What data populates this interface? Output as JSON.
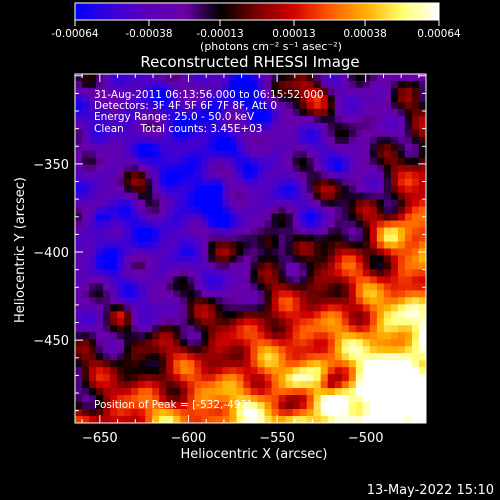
{
  "colorbar": {
    "tick_labels": [
      "-0.00064",
      "-0.00038",
      "-0.00013",
      "0.00013",
      "0.00038",
      "0.00064"
    ],
    "tick_values": [
      -0.00064,
      -0.00038,
      -0.00013,
      0.00013,
      0.00038,
      0.00064
    ],
    "range": [
      -0.00064,
      0.00064
    ],
    "units_label": "(photons cm⁻² s⁻¹ asec⁻²)",
    "colormap": [
      "#0000ff",
      "#3a00d8",
      "#5a00b8",
      "#6a00aa",
      "#000000",
      "#7a0000",
      "#d20000",
      "#ff5a00",
      "#ffb000",
      "#ffff70",
      "#ffffff"
    ]
  },
  "annotations": {
    "time_range": "31-Aug-2011 06:13:56.000 to 06:15:52.000",
    "detectors": "Detectors: 3F 4F 5F 6F 7F 8F, Att 0",
    "energy_range": "Energy Range: 25.0 - 50.0 keV",
    "clean_counts": "Clean     Total counts: 3.45E+03",
    "peak_position": "Position of Peak = [-532,-492]"
  },
  "footer_timestamp": "13-May-2022 15:10",
  "chart_data": {
    "type": "heatmap",
    "title": "Reconstructed RHESSI Image",
    "xlabel": "Heliocentric X (arcsec)",
    "ylabel": "Heliocentric Y (arcsec)",
    "xlim": [
      -664,
      -466
    ],
    "ylim": [
      -497,
      -299
    ],
    "x_ticks": [
      -650,
      -600,
      -550,
      -500
    ],
    "y_ticks": [
      -350,
      -400,
      -450
    ],
    "x_tick_labels": [
      "−650",
      "−600",
      "−550",
      "−500"
    ],
    "y_tick_labels": [
      "−350",
      "−400",
      "−450"
    ],
    "peak": [
      -532,
      -492
    ],
    "value_range": [
      -0.00064,
      0.00064
    ],
    "description_of_field": "negative (blue/purple) flux in upper-left region, strong positive (red/yellow/white) emission along lower and right edges, peak near lower center"
  }
}
